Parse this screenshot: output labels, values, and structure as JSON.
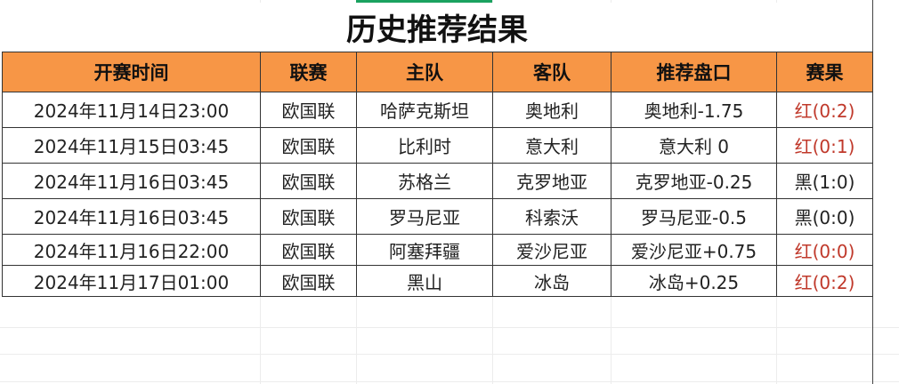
{
  "title": "历史推荐结果",
  "headers": [
    "开赛时间",
    "联赛",
    "主队",
    "客队",
    "推荐盘口",
    "赛果"
  ],
  "rows": [
    {
      "time": "2024年11月14日23:00",
      "league": "欧国联",
      "home": "哈萨克斯坦",
      "away": "奥地利",
      "pick": "奥地利-1.75",
      "result": "红(0:2)",
      "result_color": "red"
    },
    {
      "time": "2024年11月15日03:45",
      "league": "欧国联",
      "home": "比利时",
      "away": "意大利",
      "pick": "意大利 0",
      "result": "红(0:1)",
      "result_color": "red"
    },
    {
      "time": "2024年11月16日03:45",
      "league": "欧国联",
      "home": "苏格兰",
      "away": "克罗地亚",
      "pick": "克罗地亚-0.25",
      "result": "黑(1:0)",
      "result_color": "black"
    },
    {
      "time": "2024年11月16日03:45",
      "league": "欧国联",
      "home": "罗马尼亚",
      "away": "科索沃",
      "pick": "罗马尼亚-0.5",
      "result": "黑(0:0)",
      "result_color": "black"
    },
    {
      "time": "2024年11月16日22:00",
      "league": "欧国联",
      "home": "阿塞拜疆",
      "away": "爱沙尼亚",
      "pick": "爱沙尼亚+0.75",
      "result": "红(0:0)",
      "result_color": "red"
    },
    {
      "time": "2024年11月17日01:00",
      "league": "欧国联",
      "home": "黑山",
      "away": "冰岛",
      "pick": "冰岛+0.25",
      "result": "红(0:2)",
      "result_color": "red"
    }
  ],
  "colors": {
    "header_bg": "#f79646",
    "red_result": "#c0392b",
    "selection": "#1aa260"
  }
}
